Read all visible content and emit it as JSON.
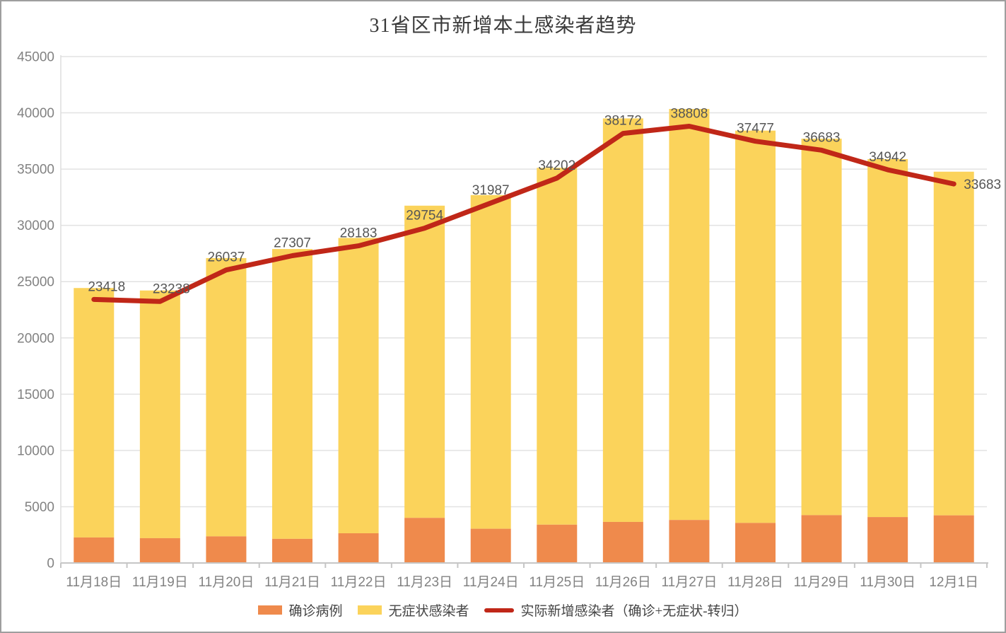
{
  "page": {
    "background": "#FFFFFF",
    "border_color": "#9E9E9E"
  },
  "title": "31省区市新增本土感染者趋势",
  "chart_data": {
    "type": "bar",
    "subtype": "stacked-bars-with-line-overlay",
    "title": "31省区市新增本土感染者趋势",
    "categories": [
      "11月18日",
      "11月19日",
      "11月20日",
      "11月21日",
      "11月22日",
      "11月23日",
      "11月24日",
      "11月25日",
      "11月26日",
      "11月27日",
      "11月28日",
      "11月29日",
      "11月30日",
      "12月1日"
    ],
    "series": [
      {
        "name": "确诊病例",
        "type": "bar",
        "stack": "total",
        "color": "#EF8A4C",
        "estimated_from_gridlines": true,
        "values": [
          2267,
          2204,
          2365,
          2145,
          2641,
          4010,
          3041,
          3405,
          3648,
          3822,
          3561,
          4250,
          4080,
          4233
        ]
      },
      {
        "name": "无症状感染者",
        "type": "bar",
        "stack": "total",
        "color": "#FBD35B",
        "estimated_from_gridlines": true,
        "values": [
          22167,
          22011,
          24730,
          25754,
          26242,
          27742,
          29654,
          31709,
          35858,
          36525,
          34860,
          33450,
          31809,
          30539
        ]
      },
      {
        "name": "实际新增感染者（确诊+无症状-转归）",
        "type": "line",
        "color": "#C02718",
        "estimated_from_gridlines": false,
        "values": [
          23418,
          23238,
          26037,
          27307,
          28183,
          29754,
          31987,
          34202,
          38172,
          38808,
          37477,
          36683,
          34942,
          33683
        ],
        "point_labels": [
          "23418",
          "23238",
          "26037",
          "27307",
          "28183",
          "29754",
          "31987",
          "34202",
          "38172",
          "38808",
          "37477",
          "36683",
          "34942",
          "33683"
        ]
      }
    ],
    "xlabel": "",
    "ylabel": "",
    "ylim": [
      0,
      45000
    ],
    "ytick_interval": 5000,
    "yticks": [
      0,
      5000,
      10000,
      15000,
      20000,
      25000,
      30000,
      35000,
      40000,
      45000
    ],
    "grid": true,
    "legend_position": "bottom",
    "colors": {
      "axis_text": "#828282",
      "data_label_text": "#565656",
      "grid_line": "#E2E2E2",
      "axis_line": "#C6C6C6",
      "y_axis_line": "#DEDEDE"
    }
  },
  "legend": {
    "items": [
      {
        "id": "confirmed",
        "swatch": "rect",
        "color": "#EF8A4C",
        "label": "确诊病例"
      },
      {
        "id": "asymptomatic",
        "swatch": "rect",
        "color": "#FBD35B",
        "label": "无症状感染者"
      },
      {
        "id": "actual-new-infections",
        "swatch": "line",
        "color": "#C02718",
        "label": "实际新增感染者（确诊+无症状-转归）"
      }
    ]
  }
}
